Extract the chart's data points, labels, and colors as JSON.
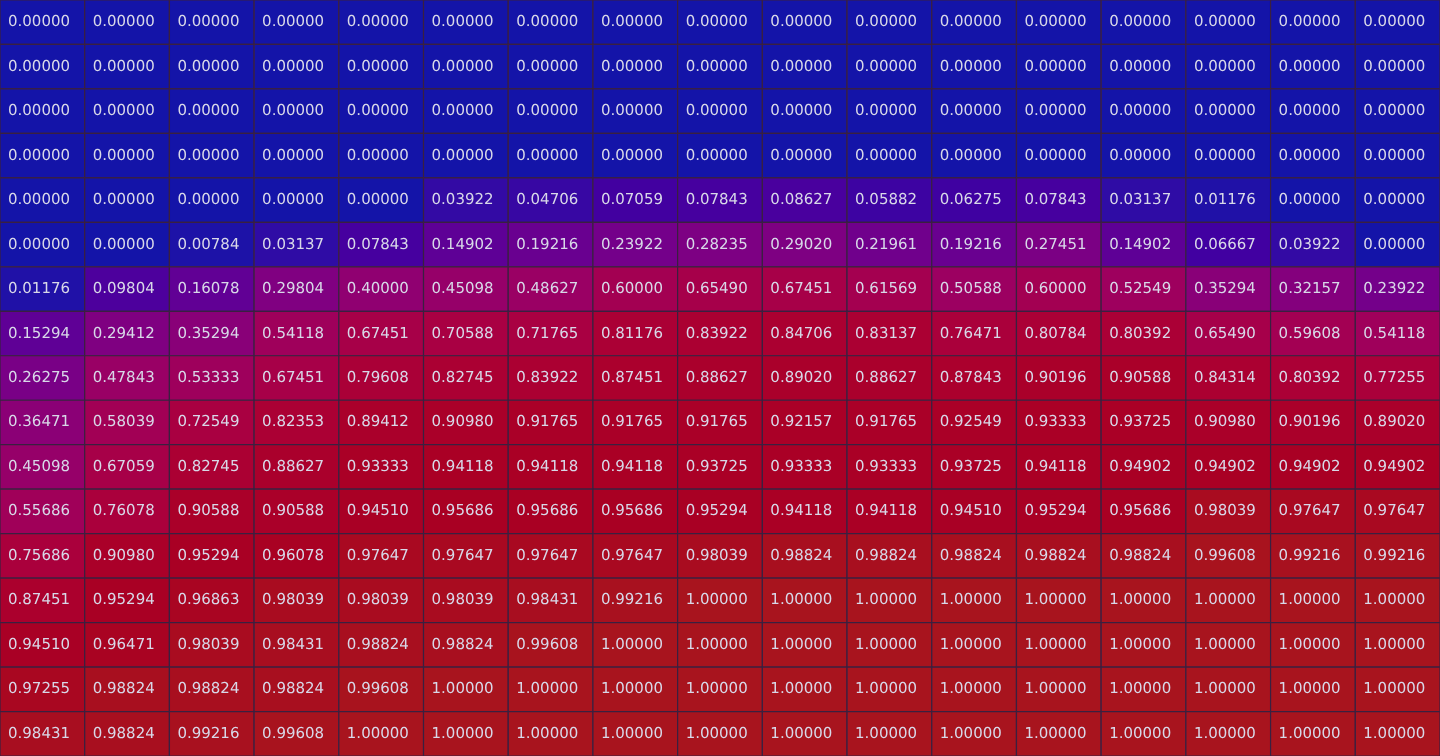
{
  "chart_data": {
    "type": "heatmap",
    "categories": [
      null,
      null,
      null,
      null,
      null,
      null,
      null,
      null,
      null,
      null,
      null,
      null,
      null,
      null,
      null,
      null,
      null
    ],
    "y_categories": [
      null,
      null,
      null,
      null,
      null,
      null,
      null,
      null,
      null,
      null,
      null,
      null,
      null,
      null,
      null,
      null,
      null
    ],
    "colors": [
      "#1414a8",
      "#a8141e"
    ],
    "cells": [
      [
        0,
        0,
        0,
        0,
        0,
        0,
        0,
        0,
        0,
        0,
        0,
        0,
        0,
        0,
        0,
        0,
        0
      ],
      [
        0,
        0,
        0,
        0,
        0,
        0,
        0,
        0,
        0,
        0,
        0,
        0,
        0,
        0,
        0,
        0,
        0
      ],
      [
        0,
        0,
        0,
        0,
        0,
        0,
        0,
        0,
        0,
        0,
        0,
        0,
        0,
        0,
        0,
        0,
        0
      ],
      [
        0,
        0,
        0,
        0,
        0,
        0,
        0,
        0,
        0,
        0,
        0,
        0,
        0,
        0,
        0,
        0,
        0
      ],
      [
        0,
        0,
        0,
        0,
        0,
        0.03922,
        0.04706,
        0.07059,
        0.07843,
        0.08627,
        0.05882,
        0.06275,
        0.07843,
        0.03137,
        0.01176,
        0,
        0
      ],
      [
        0,
        0,
        0.00784,
        0.03137,
        0.07843,
        0.14902,
        0.19216,
        0.23922,
        0.28235,
        0.2902,
        0.21961,
        0.19216,
        0.27451,
        0.14902,
        0.06667,
        0.03922,
        0
      ],
      [
        0.01176,
        0.09804,
        0.16078,
        0.29804,
        0.4,
        0.45098,
        0.48627,
        0.6,
        0.6549,
        0.67451,
        0.61569,
        0.50588,
        0.6,
        0.52549,
        0.35294,
        0.32157,
        0.23922
      ],
      [
        0.15294,
        0.29412,
        0.35294,
        0.54118,
        0.67451,
        0.70588,
        0.71765,
        0.81176,
        0.83922,
        0.84706,
        0.83137,
        0.76471,
        0.80784,
        0.80392,
        0.6549,
        0.59608,
        0.54118
      ],
      [
        0.26275,
        0.47843,
        0.53333,
        0.67451,
        0.79608,
        0.82745,
        0.83922,
        0.87451,
        0.88627,
        0.8902,
        0.88627,
        0.87843,
        0.90196,
        0.90588,
        0.84314,
        0.80392,
        0.77255
      ],
      [
        0.36471,
        0.58039,
        0.72549,
        0.82353,
        0.89412,
        0.9098,
        0.91765,
        0.91765,
        0.91765,
        0.92157,
        0.91765,
        0.92549,
        0.93333,
        0.93725,
        0.9098,
        0.90196,
        0.8902
      ],
      [
        0.45098,
        0.67059,
        0.82745,
        0.88627,
        0.93333,
        0.94118,
        0.94118,
        0.94118,
        0.93725,
        0.93333,
        0.93333,
        0.93725,
        0.94118,
        0.94902,
        0.94902,
        0.94902,
        0.94902
      ],
      [
        0.55686,
        0.76078,
        0.90588,
        0.90588,
        0.9451,
        0.95686,
        0.95686,
        0.95686,
        0.95294,
        0.94118,
        0.94118,
        0.9451,
        0.95294,
        0.95686,
        0.98039,
        0.97647,
        0.97647
      ],
      [
        0.75686,
        0.9098,
        0.95294,
        0.96078,
        0.97647,
        0.97647,
        0.97647,
        0.97647,
        0.98039,
        0.98824,
        0.98824,
        0.98824,
        0.98824,
        0.98824,
        0.99608,
        0.99216,
        0.99216
      ],
      [
        0.87451,
        0.95294,
        0.96863,
        0.98039,
        0.98039,
        0.98039,
        0.98431,
        0.99216,
        1,
        1,
        1,
        1,
        1,
        1,
        1,
        1,
        1
      ],
      [
        0.9451,
        0.96471,
        0.98039,
        0.98431,
        0.98824,
        0.98824,
        0.99608,
        1,
        1,
        1,
        1,
        1,
        1,
        1,
        1,
        1,
        1
      ],
      [
        0.97255,
        0.98824,
        0.98824,
        0.98824,
        0.99608,
        1,
        1,
        1,
        1,
        1,
        1,
        1,
        1,
        1,
        1,
        1,
        1
      ],
      [
        0.98431,
        0.98824,
        0.99216,
        0.99608,
        1,
        1,
        1,
        1,
        1,
        1,
        1,
        1,
        1,
        1,
        1,
        1,
        1
      ]
    ],
    "cell_labels": [
      [
        "0.00000",
        "0.00000",
        "0.00000",
        "0.00000",
        "0.00000",
        "0.00000",
        "0.00000",
        "0.00000",
        "0.00000",
        "0.00000",
        "0.00000",
        "0.00000",
        "0.00000",
        "0.00000",
        "0.00000",
        "0.00000",
        "0.00000"
      ],
      [
        "0.00000",
        "0.00000",
        "0.00000",
        "0.00000",
        "0.00000",
        "0.00000",
        "0.00000",
        "0.00000",
        "0.00000",
        "0.00000",
        "0.00000",
        "0.00000",
        "0.00000",
        "0.00000",
        "0.00000",
        "0.00000",
        "0.00000"
      ],
      [
        "0.00000",
        "0.00000",
        "0.00000",
        "0.00000",
        "0.00000",
        "0.00000",
        "0.00000",
        "0.00000",
        "0.00000",
        "0.00000",
        "0.00000",
        "0.00000",
        "0.00000",
        "0.00000",
        "0.00000",
        "0.00000",
        "0.00000"
      ],
      [
        "0.00000",
        "0.00000",
        "0.00000",
        "0.00000",
        "0.00000",
        "0.00000",
        "0.00000",
        "0.00000",
        "0.00000",
        "0.00000",
        "0.00000",
        "0.00000",
        "0.00000",
        "0.00000",
        "0.00000",
        "0.00000",
        "0.00000"
      ],
      [
        "0.00000",
        "0.00000",
        "0.00000",
        "0.00000",
        "0.00000",
        "0.03922",
        "0.04706",
        "0.07059",
        "0.07843",
        "0.08627",
        "0.05882",
        "0.06275",
        "0.07843",
        "0.03137",
        "0.01176",
        "0.00000",
        "0.00000"
      ],
      [
        "0.00000",
        "0.00000",
        "0.00784",
        "0.03137",
        "0.07843",
        "0.14902",
        "0.19216",
        "0.23922",
        "0.28235",
        "0.29020",
        "0.21961",
        "0.19216",
        "0.27451",
        "0.14902",
        "0.06667",
        "0.03922",
        "0.00000"
      ],
      [
        "0.01176",
        "0.09804",
        "0.16078",
        "0.29804",
        "0.40000",
        "0.45098",
        "0.48627",
        "0.60000",
        "0.65490",
        "0.67451",
        "0.61569",
        "0.50588",
        "0.60000",
        "0.52549",
        "0.35294",
        "0.32157",
        "0.23922"
      ],
      [
        "0.15294",
        "0.29412",
        "0.35294",
        "0.54118",
        "0.67451",
        "0.70588",
        "0.71765",
        "0.81176",
        "0.83922",
        "0.84706",
        "0.83137",
        "0.76471",
        "0.80784",
        "0.80392",
        "0.65490",
        "0.59608",
        "0.54118"
      ],
      [
        "0.26275",
        "0.47843",
        "0.53333",
        "0.67451",
        "0.79608",
        "0.82745",
        "0.83922",
        "0.87451",
        "0.88627",
        "0.89020",
        "0.88627",
        "0.87843",
        "0.90196",
        "0.90588",
        "0.84314",
        "0.80392",
        "0.77255"
      ],
      [
        "0.36471",
        "0.58039",
        "0.72549",
        "0.82353",
        "0.89412",
        "0.90980",
        "0.91765",
        "0.91765",
        "0.91765",
        "0.92157",
        "0.91765",
        "0.92549",
        "0.93333",
        "0.93725",
        "0.90980",
        "0.90196",
        "0.89020"
      ],
      [
        "0.45098",
        "0.67059",
        "0.82745",
        "0.88627",
        "0.93333",
        "0.94118",
        "0.94118",
        "0.94118",
        "0.93725",
        "0.93333",
        "0.93333",
        "0.93725",
        "0.94118",
        "0.94902",
        "0.94902",
        "0.94902",
        "0.94902"
      ],
      [
        "0.55686",
        "0.76078",
        "0.90588",
        "0.90588",
        "0.94510",
        "0.95686",
        "0.95686",
        "0.95686",
        "0.95294",
        "0.94118",
        "0.94118",
        "0.94510",
        "0.95294",
        "0.95686",
        "0.98039",
        "0.97647",
        "0.97647"
      ],
      [
        "0.75686",
        "0.90980",
        "0.95294",
        "0.96078",
        "0.97647",
        "0.97647",
        "0.97647",
        "0.97647",
        "0.98039",
        "0.98824",
        "0.98824",
        "0.98824",
        "0.98824",
        "0.98824",
        "0.99608",
        "0.99216",
        "0.99216"
      ],
      [
        "0.87451",
        "0.95294",
        "0.96863",
        "0.98039",
        "0.98039",
        "0.98039",
        "0.98431",
        "0.99216",
        "1.00000",
        "1.00000",
        "1.00000",
        "1.00000",
        "1.00000",
        "1.00000",
        "1.00000",
        "1.00000",
        "1.00000"
      ],
      [
        "0.94510",
        "0.96471",
        "0.98039",
        "0.98431",
        "0.98824",
        "0.98824",
        "0.99608",
        "1.00000",
        "1.00000",
        "1.00000",
        "1.00000",
        "1.00000",
        "1.00000",
        "1.00000",
        "1.00000",
        "1.00000",
        "1.00000"
      ],
      [
        "0.97255",
        "0.98824",
        "0.98824",
        "0.98824",
        "0.99608",
        "1.00000",
        "1.00000",
        "1.00000",
        "1.00000",
        "1.00000",
        "1.00000",
        "1.00000",
        "1.00000",
        "1.00000",
        "1.00000",
        "1.00000",
        "1.00000"
      ],
      [
        "0.98431",
        "0.98824",
        "0.99216",
        "0.99608",
        "1.00000",
        "1.00000",
        "1.00000",
        "1.00000",
        "1.00000",
        "1.00000",
        "1.00000",
        "1.00000",
        "1.00000",
        "1.00000",
        "1.00000",
        "1.00000",
        "1.00000"
      ]
    ]
  }
}
